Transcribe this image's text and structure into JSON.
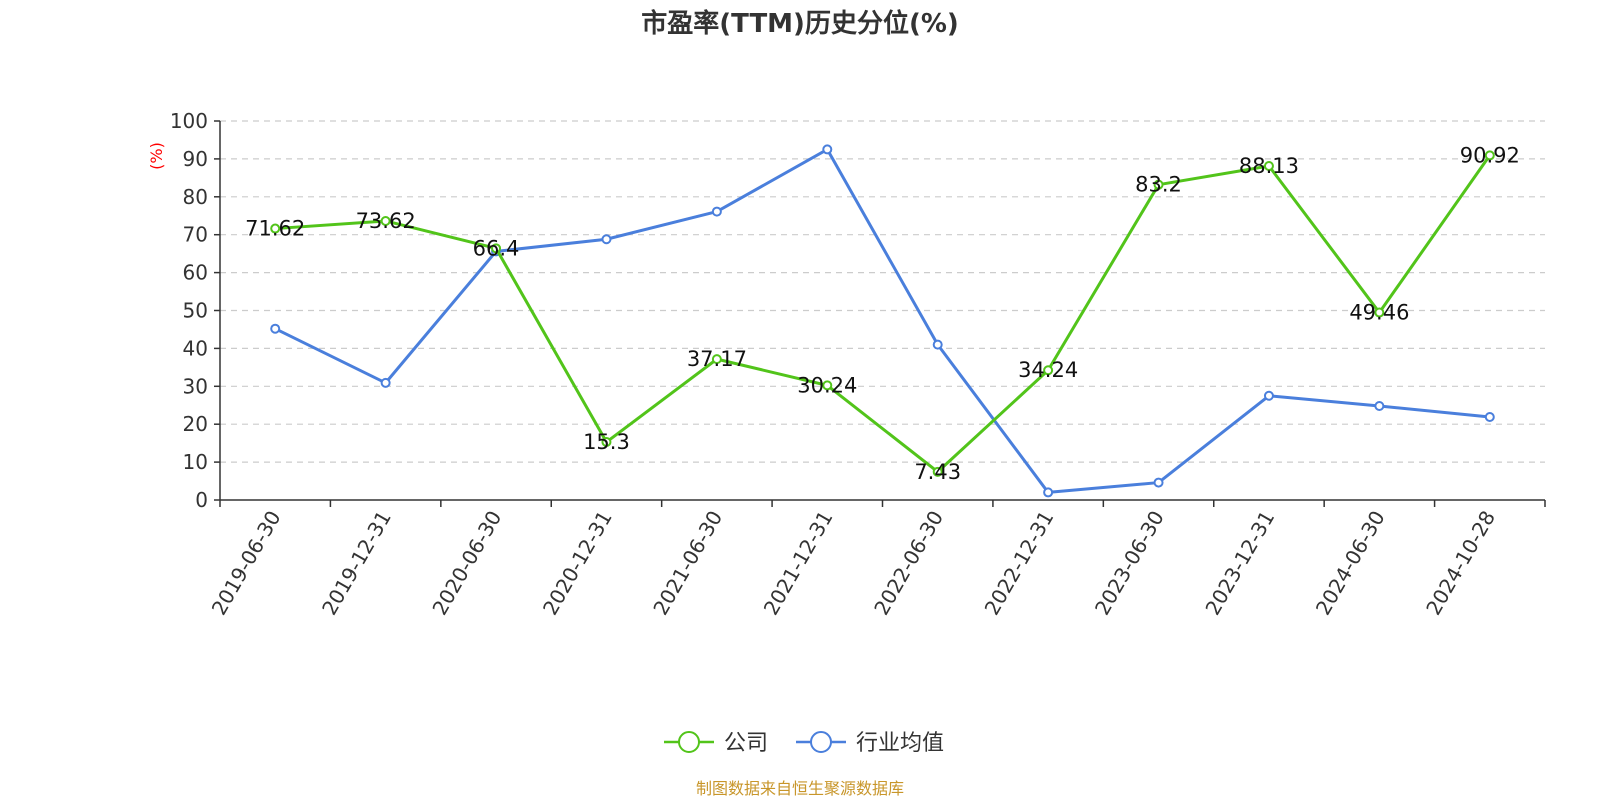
{
  "chart_data": {
    "type": "line",
    "title": "市盈率(TTM)历史分位(%)",
    "ylabel": "(%)",
    "ylim": [
      0,
      100
    ],
    "yticks": [
      0,
      10,
      20,
      30,
      40,
      50,
      60,
      70,
      80,
      90,
      100
    ],
    "grid": true,
    "legend_position": "bottom-center",
    "categories": [
      "2019-06-30",
      "2019-12-31",
      "2020-06-30",
      "2020-12-31",
      "2021-06-30",
      "2021-12-31",
      "2022-06-30",
      "2022-12-31",
      "2023-06-30",
      "2023-12-31",
      "2024-06-30",
      "2024-10-28"
    ],
    "series": [
      {
        "name": "公司",
        "color": "#52c41a",
        "show_labels": true,
        "values": [
          71.62,
          73.62,
          66.4,
          15.3,
          37.17,
          30.24,
          7.43,
          34.24,
          83.2,
          88.13,
          49.46,
          90.92
        ]
      },
      {
        "name": "行业均值",
        "color": "#4a7fdc",
        "show_labels": false,
        "values": [
          45.2,
          30.9,
          65.6,
          68.8,
          76.1,
          92.5,
          41.0,
          2.0,
          4.6,
          27.5,
          24.8,
          21.9
        ]
      }
    ]
  },
  "source_note": "制图数据来自恒生聚源数据库"
}
